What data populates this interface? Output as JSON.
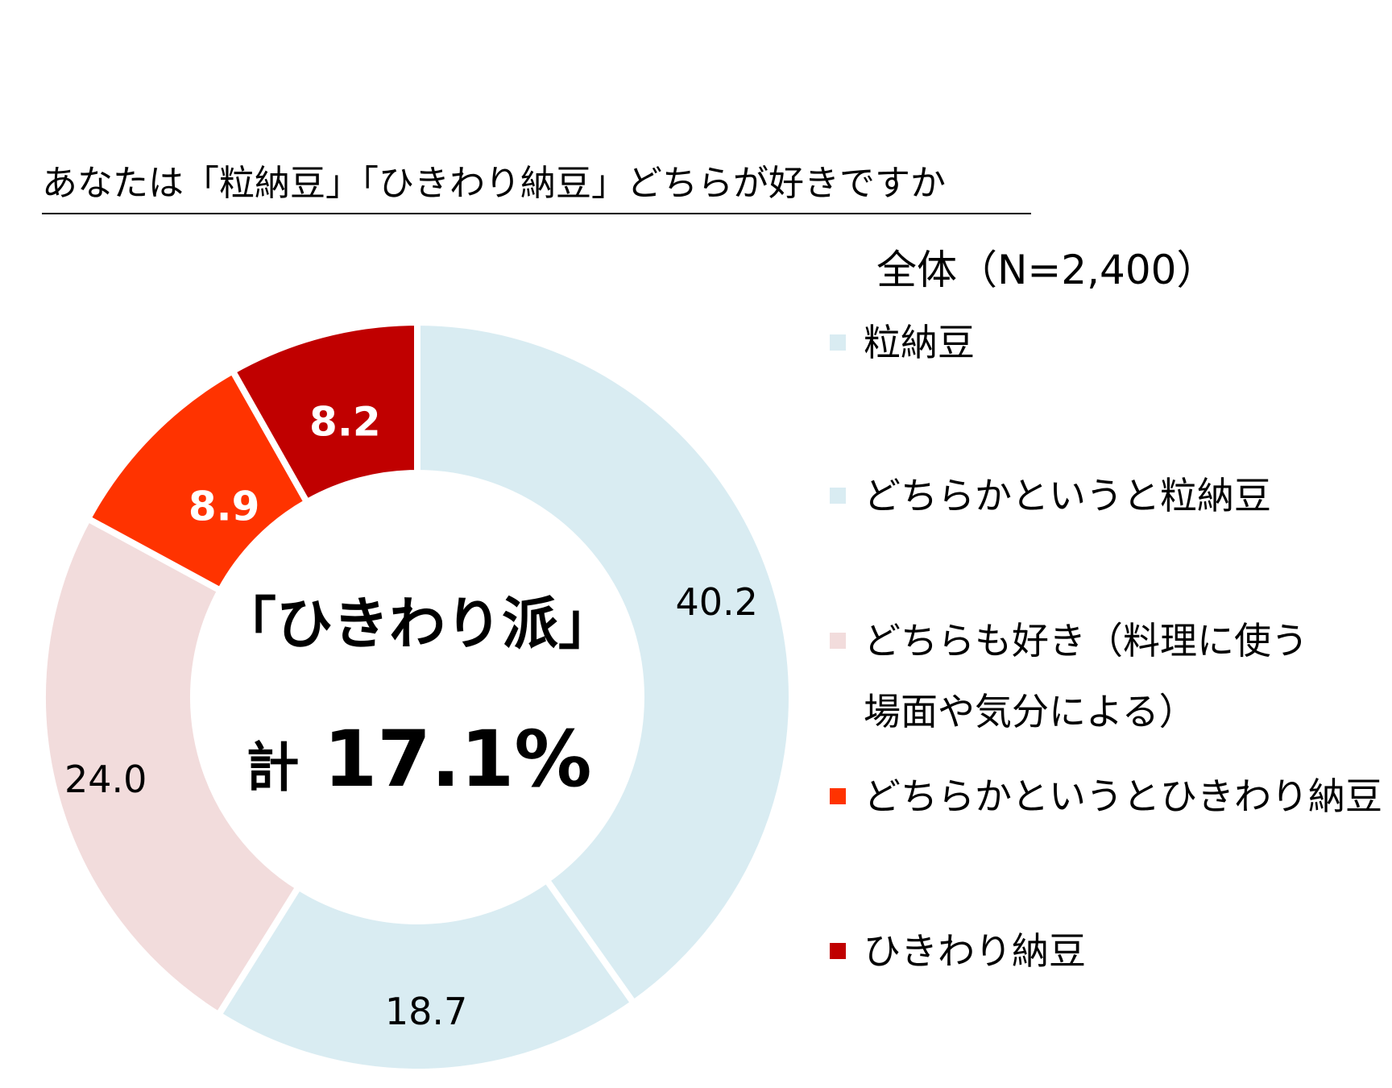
{
  "header": {
    "title": "あなたは「粒納豆」「ひきわり納豆」どちらが好きですか",
    "subtitle": "全体（N=2,400）"
  },
  "center": {
    "line1": "「ひきわり派」",
    "line2_prefix": "計",
    "line2_value": "17.1%"
  },
  "chart_data": {
    "type": "pie",
    "donut": true,
    "title": "あなたは「粒納豆」「ひきわり納豆」どちらが好きですか",
    "subtitle": "全体（N=2,400）",
    "categories": [
      "粒納豆",
      "どちらかというと粒納豆",
      "どちらも好き（料理に使う\n場面や気分による）",
      "どちらかというとひきわり納豆",
      "ひきわり納豆"
    ],
    "values": [
      40.2,
      18.7,
      24.0,
      8.9,
      8.2
    ],
    "labels": [
      "40.2",
      "18.7",
      "24.0",
      "8.9",
      "8.2"
    ],
    "colors": [
      "#d9ecf2",
      "#d9ecf2",
      "#f2dcdc",
      "#ff3300",
      "#c00000"
    ],
    "label_colors": [
      "#000000",
      "#000000",
      "#000000",
      "#ffffff",
      "#ffffff"
    ],
    "label_bold": [
      false,
      false,
      false,
      true,
      true
    ],
    "legend_position": "right"
  }
}
